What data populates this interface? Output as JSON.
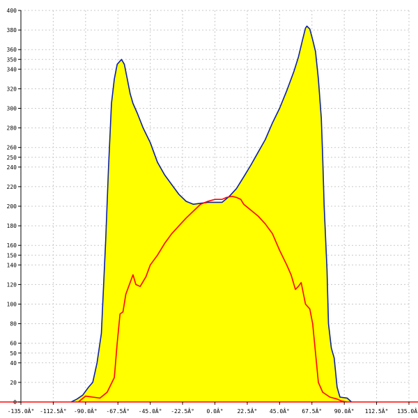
{
  "chart_data": {
    "type": "area",
    "title": "",
    "xlabel": "",
    "ylabel": "",
    "xlim": [
      -135,
      135
    ],
    "ylim": [
      0,
      400
    ],
    "grid": true,
    "x_ticks": [
      -135,
      -112.5,
      -90,
      -67.5,
      -45,
      -22.5,
      0,
      22.5,
      45,
      67.5,
      90,
      112.5,
      135
    ],
    "x_tick_labels": [
      "-135.0Â°",
      "-112.5Â°",
      "-90.0Â°",
      "-67.5Â°",
      "-45.0Â°",
      "-22.5Â°",
      "0.0Â°",
      "22.5Â°",
      "45.0Â°",
      "67.5Â°",
      "90.0Â°",
      "112.5Â°",
      "135.0Â°"
    ],
    "y_ticks": [
      0,
      20,
      40,
      50,
      60,
      80,
      100,
      120,
      140,
      150,
      160,
      180,
      200,
      220,
      240,
      250,
      260,
      280,
      300,
      320,
      340,
      350,
      360,
      380,
      400
    ],
    "y_tick_labels": [
      "0",
      "20",
      "40",
      "50",
      "60",
      "80",
      "100",
      "120",
      "140",
      "150",
      "160",
      "180",
      "200",
      "220",
      "240",
      "250",
      "260",
      "280",
      "300",
      "320",
      "340",
      "350",
      "360",
      "380",
      "400"
    ],
    "series": [
      {
        "color": "#0b1fa6",
        "fill": "#ffff00",
        "points": [
          [
            -100,
            0
          ],
          [
            -96,
            3
          ],
          [
            -92,
            7
          ],
          [
            -88,
            15
          ],
          [
            -85,
            20
          ],
          [
            -82,
            40
          ],
          [
            -79,
            70
          ],
          [
            -76,
            165
          ],
          [
            -74,
            240
          ],
          [
            -72,
            305
          ],
          [
            -70,
            330
          ],
          [
            -68,
            345
          ],
          [
            -65,
            350
          ],
          [
            -63,
            345
          ],
          [
            -61,
            330
          ],
          [
            -59,
            315
          ],
          [
            -57,
            305
          ],
          [
            -54,
            295
          ],
          [
            -50,
            280
          ],
          [
            -45,
            265
          ],
          [
            -40,
            245
          ],
          [
            -35,
            232
          ],
          [
            -30,
            222
          ],
          [
            -25,
            212
          ],
          [
            -20,
            205
          ],
          [
            -15,
            202
          ],
          [
            -10,
            203
          ],
          [
            -5,
            204
          ],
          [
            0,
            204
          ],
          [
            5,
            204
          ],
          [
            10,
            210
          ],
          [
            15,
            218
          ],
          [
            20,
            230
          ],
          [
            25,
            242
          ],
          [
            30,
            255
          ],
          [
            35,
            268
          ],
          [
            40,
            285
          ],
          [
            45,
            300
          ],
          [
            50,
            318
          ],
          [
            55,
            338
          ],
          [
            58,
            352
          ],
          [
            61,
            370
          ],
          [
            63,
            382
          ],
          [
            64,
            384
          ],
          [
            66,
            381
          ],
          [
            68,
            370
          ],
          [
            70,
            358
          ],
          [
            72,
            330
          ],
          [
            74,
            290
          ],
          [
            75,
            250
          ],
          [
            76,
            200
          ],
          [
            78,
            135
          ],
          [
            79,
            80
          ],
          [
            81,
            55
          ],
          [
            83,
            45
          ],
          [
            85,
            15
          ],
          [
            87,
            5
          ],
          [
            92,
            4
          ],
          [
            95,
            0
          ]
        ]
      },
      {
        "color": "#ff0000",
        "points": [
          [
            -95,
            0
          ],
          [
            -90,
            6
          ],
          [
            -85,
            5
          ],
          [
            -80,
            4
          ],
          [
            -75,
            10
          ],
          [
            -70,
            25
          ],
          [
            -68,
            60
          ],
          [
            -66,
            90
          ],
          [
            -64,
            92
          ],
          [
            -62,
            110
          ],
          [
            -60,
            118
          ],
          [
            -57,
            130
          ],
          [
            -55,
            120
          ],
          [
            -52,
            118
          ],
          [
            -48,
            128
          ],
          [
            -45,
            140
          ],
          [
            -40,
            150
          ],
          [
            -35,
            162
          ],
          [
            -30,
            172
          ],
          [
            -25,
            180
          ],
          [
            -20,
            188
          ],
          [
            -15,
            195
          ],
          [
            -10,
            202
          ],
          [
            -5,
            205
          ],
          [
            0,
            207
          ],
          [
            5,
            207
          ],
          [
            8,
            209
          ],
          [
            12,
            210
          ],
          [
            15,
            209
          ],
          [
            18,
            207
          ],
          [
            20,
            202
          ],
          [
            25,
            196
          ],
          [
            30,
            190
          ],
          [
            35,
            182
          ],
          [
            40,
            172
          ],
          [
            45,
            155
          ],
          [
            50,
            140
          ],
          [
            53,
            130
          ],
          [
            56,
            115
          ],
          [
            58,
            118
          ],
          [
            60,
            122
          ],
          [
            63,
            100
          ],
          [
            66,
            95
          ],
          [
            68,
            80
          ],
          [
            70,
            50
          ],
          [
            72,
            20
          ],
          [
            75,
            10
          ],
          [
            80,
            5
          ],
          [
            85,
            3
          ],
          [
            88,
            1
          ],
          [
            92,
            0
          ]
        ]
      }
    ]
  }
}
